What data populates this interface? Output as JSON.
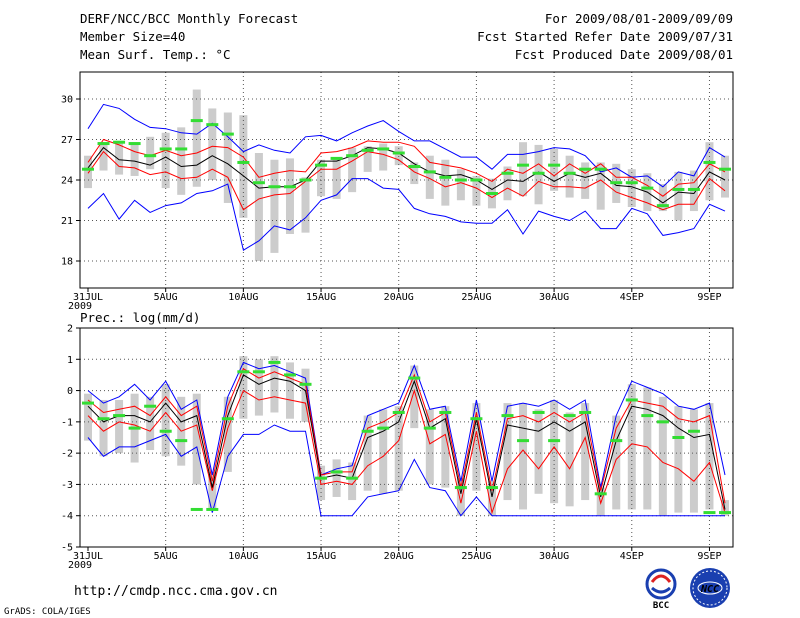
{
  "header": {
    "title": "DERF/NCC/BCC Monthly Forecast",
    "member_size": "Member Size=40",
    "variable": "Mean Surf. Temp.: °C",
    "period": "For 2009/08/01-2009/09/09",
    "fcst_started": "Fcst Started Refer Date 2009/07/31",
    "fcst_produced": "Fcst Produced Date 2009/08/01"
  },
  "footer": {
    "url": "http://cmdp.ncc.cma.gov.cn",
    "grads": "GrADS: COLA/IGES",
    "logo_bcc": "BCC",
    "logo_ncc": "NCC"
  },
  "colors": {
    "envelope": "#0000ff",
    "spread": "#ff0000",
    "mean": "#000000",
    "observed": "#33dd33",
    "bars": "#cccccc",
    "grid": "#555555"
  },
  "chart_data": [
    {
      "type": "line",
      "title": "Mean Surf. Temp.: °C",
      "x_ticks": [
        "31JUL\n2009",
        "5AUG",
        "10AUG",
        "15AUG",
        "20AUG",
        "25AUG",
        "30AUG",
        "4SEP",
        "9SEP"
      ],
      "x_tick_index": [
        0,
        5,
        10,
        15,
        20,
        25,
        30,
        35,
        40
      ],
      "ylim": [
        16,
        32
      ],
      "y_ticks": [
        18,
        21,
        24,
        27,
        30
      ],
      "grid": true,
      "series": [
        {
          "name": "max",
          "color": "#0000ff",
          "values": [
            27.8,
            29.6,
            29.3,
            28.5,
            27.9,
            27.8,
            27.5,
            27.4,
            28.2,
            27.2,
            26.1,
            26.6,
            26.2,
            26,
            27.2,
            27.3,
            26.9,
            27.5,
            28,
            28.4,
            27.6,
            26.9,
            26.9,
            26.3,
            25.7,
            25.7,
            24.8,
            25.9,
            25.9,
            26.1,
            26.4,
            26.3,
            25.8,
            24.6,
            24.9,
            24.2,
            24.3,
            23.5,
            24.6,
            24.3,
            26.4,
            25.7
          ]
        },
        {
          "name": "p75",
          "color": "#ff0000",
          "values": [
            25.3,
            27,
            26.6,
            26.1,
            25.8,
            26.2,
            25.8,
            26,
            26.5,
            26.4,
            25.7,
            24.2,
            24.5,
            24.7,
            24.6,
            26,
            26.1,
            26.4,
            26.9,
            26.8,
            26.8,
            26.5,
            25.3,
            25.1,
            24.9,
            24.5,
            23.9,
            24.8,
            24.5,
            25.2,
            24.3,
            25.2,
            24.5,
            25.2,
            24.2,
            24.2,
            23.6,
            22.8,
            23.7,
            23.8,
            25.2,
            24.6
          ]
        },
        {
          "name": "mean",
          "color": "#000000",
          "values": [
            24.9,
            26.4,
            25.5,
            25.4,
            25.1,
            25.7,
            25,
            25.1,
            25.8,
            25.2,
            24.3,
            23.4,
            23.5,
            23.5,
            24,
            25.4,
            25.4,
            25.8,
            26.4,
            26.3,
            26,
            25.2,
            24.6,
            24.3,
            24.4,
            24,
            23.3,
            24,
            23.9,
            24.6,
            23.9,
            24.5,
            24.2,
            24.5,
            23.6,
            23.5,
            23.1,
            22.3,
            23.1,
            23,
            24.6,
            24
          ]
        },
        {
          "name": "p25",
          "color": "#ff0000",
          "values": [
            24.5,
            26.1,
            25,
            24.9,
            24.4,
            24.6,
            24.1,
            24.2,
            24.8,
            24.2,
            21.8,
            22.6,
            22.9,
            23,
            23.9,
            24.8,
            24.8,
            25.4,
            26.1,
            25.9,
            25.5,
            24.6,
            24.1,
            23.5,
            23.8,
            23.4,
            22.7,
            23.4,
            22.8,
            23.9,
            23.5,
            23.5,
            23.4,
            24,
            23.1,
            22.7,
            22.3,
            21.8,
            22.2,
            22.2,
            24.1,
            23.2
          ]
        },
        {
          "name": "min",
          "color": "#0000ff",
          "values": [
            21.9,
            23,
            21.1,
            22.5,
            21.6,
            22.1,
            22.3,
            23,
            23.2,
            23.7,
            18.8,
            19.5,
            20.6,
            20.3,
            21.2,
            22.5,
            22.9,
            24.1,
            24.1,
            23.4,
            23.3,
            21.9,
            21.5,
            21.3,
            20.9,
            20.8,
            20.8,
            21.8,
            20,
            21.7,
            21.3,
            21,
            21.7,
            20.4,
            20.4,
            21.9,
            21.5,
            19.9,
            20.1,
            20.4,
            22.2,
            21.7
          ]
        },
        {
          "name": "bar_hi",
          "values": [
            25.8,
            26.7,
            26.8,
            26.8,
            27.2,
            27.5,
            27.9,
            30.7,
            29.3,
            29,
            28.8,
            26,
            25.5,
            25.6,
            24.2,
            25.5,
            25.7,
            26.4,
            26.5,
            26.7,
            26.5,
            25.3,
            25.8,
            25.5,
            24.8,
            24.3,
            24.1,
            25,
            26.8,
            26.6,
            26.3,
            25.8,
            25.3,
            25.3,
            25.2,
            24.8,
            24.5,
            23.7,
            24.6,
            24.7,
            26.8,
            25.8
          ]
        },
        {
          "name": "bar_lo",
          "values": [
            23.4,
            24.7,
            24.4,
            24.3,
            24.8,
            23.4,
            22.9,
            23.5,
            24,
            22.3,
            21.2,
            18,
            18.6,
            20,
            20.1,
            22.8,
            22.6,
            23.1,
            24.6,
            24.7,
            25.1,
            23.7,
            22.6,
            22.1,
            22.5,
            22.1,
            21.9,
            22.5,
            22.8,
            22.2,
            23.2,
            22.7,
            22.6,
            21.8,
            22.3,
            22,
            21.7,
            21.7,
            21,
            21.7,
            22.5,
            22.7
          ]
        },
        {
          "name": "observed",
          "color": "#33dd33",
          "values": [
            24.8,
            26.7,
            26.8,
            26.7,
            25.8,
            26.3,
            26.3,
            28.4,
            28.1,
            27.4,
            25.3,
            23.8,
            23.5,
            23.5,
            24,
            25.1,
            25.6,
            25.8,
            26.2,
            26.3,
            26,
            25,
            24.6,
            24.2,
            24,
            24,
            23,
            24.5,
            25.1,
            24.5,
            25.1,
            24.5,
            24.8,
            24.8,
            23.8,
            23.8,
            23.4,
            22.1,
            23.3,
            23.3,
            25.3,
            24.8
          ]
        }
      ]
    },
    {
      "type": "line",
      "title": "Prec.: log(mm/d)",
      "x_ticks": [
        "31JUL\n2009",
        "5AUG",
        "10AUG",
        "15AUG",
        "20AUG",
        "25AUG",
        "30AUG",
        "4SEP",
        "9SEP"
      ],
      "x_tick_index": [
        0,
        5,
        10,
        15,
        20,
        25,
        30,
        35,
        40
      ],
      "ylim": [
        -5,
        2
      ],
      "y_ticks": [
        -5,
        -4,
        -3,
        -2,
        -1,
        0,
        1,
        2
      ],
      "grid": true,
      "series": [
        {
          "name": "max",
          "color": "#0000ff",
          "values": [
            0,
            -0.4,
            -0.2,
            0.2,
            -0.3,
            0.3,
            -0.6,
            -0.3,
            -2.7,
            -0.2,
            0.9,
            0.7,
            0.8,
            0.6,
            0.4,
            -2.7,
            -2.5,
            -2.4,
            -0.8,
            -0.6,
            -0.4,
            0.8,
            -0.6,
            -0.5,
            -2.9,
            -0.3,
            -2.9,
            -0.5,
            -0.4,
            -0.5,
            -0.3,
            -0.6,
            -0.3,
            -3.1,
            -0.8,
            0.3,
            0.1,
            -0.1,
            -0.5,
            -0.6,
            -0.4,
            -2.7
          ]
        },
        {
          "name": "p75",
          "color": "#ff0000",
          "values": [
            -0.3,
            -0.7,
            -0.6,
            -0.5,
            -0.8,
            -0.2,
            -0.8,
            -0.5,
            -2.9,
            -0.5,
            0.7,
            0.4,
            0.6,
            0.4,
            0.2,
            -2.7,
            -2.6,
            -2.6,
            -1.2,
            -1,
            -0.7,
            0.5,
            -1,
            -0.7,
            -3.1,
            -0.7,
            -3.2,
            -0.9,
            -0.8,
            -1,
            -0.7,
            -1,
            -0.7,
            -3.2,
            -1.2,
            -0.3,
            -0.4,
            -0.5,
            -0.9,
            -1,
            -0.8,
            -3.6
          ]
        },
        {
          "name": "mean",
          "color": "#000000",
          "values": [
            -0.5,
            -1,
            -0.8,
            -0.8,
            -1,
            -0.4,
            -1,
            -0.8,
            -3.1,
            -0.8,
            0.5,
            0.2,
            0.4,
            0.3,
            0,
            -2.8,
            -2.7,
            -2.8,
            -1.5,
            -1.3,
            -1,
            0.3,
            -1.2,
            -0.9,
            -3.3,
            -0.9,
            -3.4,
            -1.1,
            -1.2,
            -1.3,
            -1,
            -1.3,
            -1,
            -3.4,
            -1.6,
            -0.5,
            -0.6,
            -0.8,
            -1.2,
            -1.5,
            -1.4,
            -3.8
          ]
        },
        {
          "name": "p25",
          "color": "#ff0000",
          "values": [
            -0.8,
            -1.3,
            -1,
            -1.1,
            -1.3,
            -0.7,
            -1.3,
            -1.1,
            -3.2,
            -1.2,
            0,
            -0.3,
            -0.2,
            -0.3,
            -0.4,
            -3,
            -2.9,
            -3,
            -2.4,
            -2.1,
            -1.6,
            0,
            -1.7,
            -1.4,
            -3.6,
            -1.3,
            -3.9,
            -2.5,
            -1.9,
            -2.5,
            -1.8,
            -2.5,
            -1.5,
            -3.6,
            -2.2,
            -1.7,
            -1.8,
            -2.3,
            -2.5,
            -2.9,
            -2.3,
            -3.9
          ]
        },
        {
          "name": "min",
          "color": "#0000ff",
          "values": [
            -1.5,
            -2.1,
            -1.8,
            -1.8,
            -1.6,
            -1.4,
            -2.1,
            -1.8,
            -3.9,
            -2.1,
            -1.4,
            -1.4,
            -1.1,
            -1.3,
            -1.3,
            -4,
            -4,
            -4,
            -3.4,
            -3.3,
            -3.2,
            -2.2,
            -3.1,
            -3.2,
            -4,
            -3.4,
            -4,
            -4,
            -4,
            -4,
            -4,
            -4,
            -4,
            -4,
            -4,
            -4,
            -4,
            -4,
            -4,
            -4,
            -4,
            -4
          ]
        },
        {
          "name": "bar_hi",
          "values": [
            -0.1,
            -0.3,
            -0.3,
            -0.1,
            -0.2,
            0.2,
            -0.2,
            -0.1,
            -2.6,
            -0.2,
            1.1,
            1,
            1.1,
            0.9,
            0.7,
            -2.4,
            -2.2,
            -2.3,
            -0.8,
            -0.6,
            -0.5,
            0.8,
            -0.6,
            -0.5,
            -2.8,
            -0.4,
            -2.9,
            -0.4,
            -0.4,
            -0.6,
            -0.3,
            -0.7,
            -0.4,
            -3.1,
            -0.8,
            0.2,
            0.1,
            -0.2,
            -0.5,
            -0.6,
            -0.4,
            -3.5
          ]
        },
        {
          "name": "bar_lo",
          "values": [
            -1.6,
            -2.1,
            -2,
            -2.3,
            -1.9,
            -2.1,
            -2.4,
            -3,
            -3.8,
            -2.6,
            -0.9,
            -0.8,
            -0.7,
            -0.9,
            -1,
            -3.5,
            -3.4,
            -3.5,
            -3.2,
            -3.3,
            -3.2,
            -1.2,
            -3,
            -3.1,
            -4,
            -3.2,
            -4,
            -3.5,
            -3.8,
            -3.3,
            -3.6,
            -3.7,
            -3.5,
            -4,
            -3.8,
            -3.8,
            -3.8,
            -4,
            -3.9,
            -3.9,
            -3.8,
            -4
          ]
        },
        {
          "name": "observed",
          "color": "#33dd33",
          "values": [
            -0.4,
            -0.9,
            -0.8,
            -1.2,
            -0.5,
            -1.3,
            -1.6,
            -3.8,
            -3.8,
            -0.9,
            0.6,
            0.6,
            0.9,
            0.5,
            0.2,
            -2.8,
            -2.6,
            -2.8,
            -1.3,
            -1.2,
            -0.7,
            0.4,
            -1.2,
            -0.7,
            -3.1,
            -0.9,
            -3.1,
            -0.8,
            -1.6,
            -0.7,
            -1.6,
            -0.8,
            -0.7,
            -3.3,
            -1.6,
            -0.3,
            -0.8,
            -1,
            -1.5,
            -1.3,
            -3.9,
            -3.9
          ]
        }
      ]
    }
  ]
}
